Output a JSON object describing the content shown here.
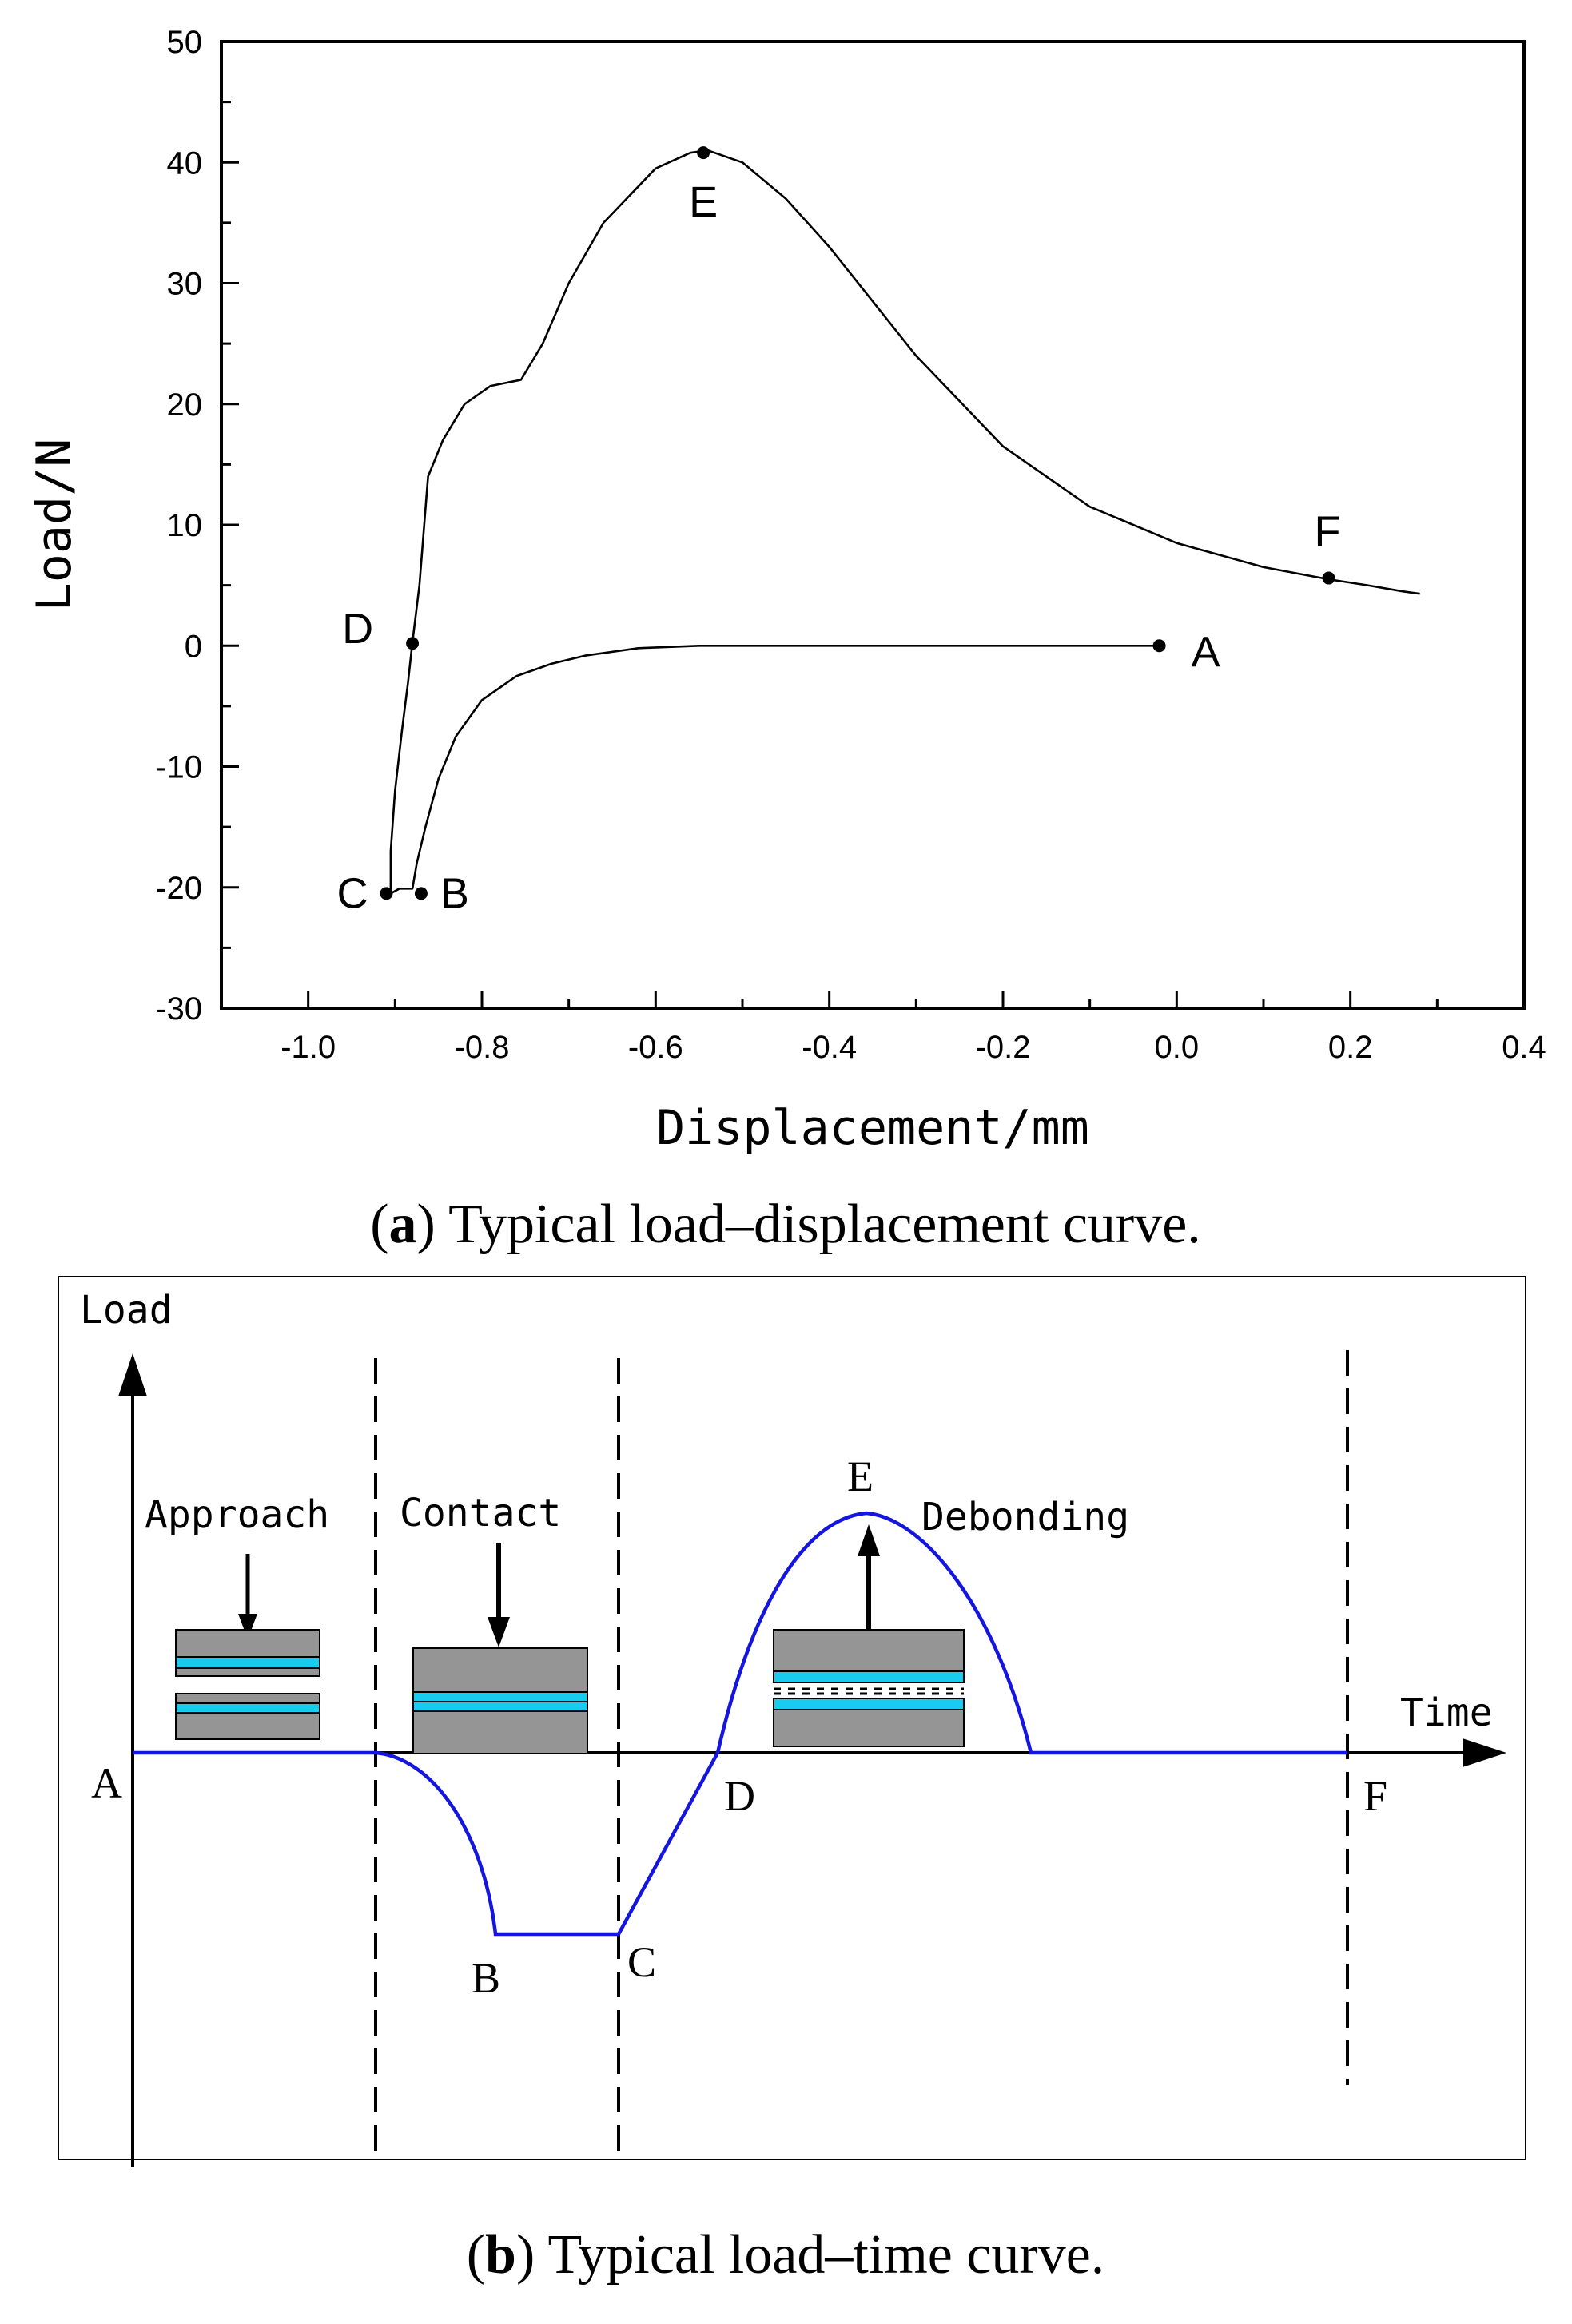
{
  "chart_data": [
    {
      "type": "line",
      "title": "(a) Typical load–displacement curve.",
      "caption_letter": "a",
      "caption_text": "Typical load–displacement curve.",
      "xlabel": "Displacement/mm",
      "ylabel": "Load/N",
      "xlim": [
        -1.1,
        0.4
      ],
      "ylim": [
        -30,
        50
      ],
      "xticks": [
        -1.0,
        -0.8,
        -0.6,
        -0.4,
        -0.2,
        0.0,
        0.2,
        0.4
      ],
      "xtick_labels": [
        "-1.0",
        "-0.8",
        "-0.6",
        "-0.4",
        "-0.2",
        "0.0",
        "0.2",
        "0.4"
      ],
      "yticks": [
        -30,
        -20,
        -10,
        0,
        10,
        20,
        30,
        40,
        50
      ],
      "ytick_labels": [
        "-30",
        "-20",
        "-10",
        "0",
        "10",
        "20",
        "30",
        "40",
        "50"
      ],
      "grid": false,
      "series": [
        {
          "name": "load-displacement",
          "x": [
            -0.02,
            -0.2,
            -0.4,
            -0.55,
            -0.62,
            -0.68,
            -0.72,
            -0.76,
            -0.8,
            -0.83,
            -0.85,
            -0.865,
            -0.875,
            -0.88,
            -0.895,
            -0.905,
            -0.905,
            -0.9,
            -0.892,
            -0.885,
            -0.88,
            -0.872,
            -0.862,
            -0.845,
            -0.82,
            -0.79,
            -0.755,
            -0.73,
            -0.7,
            -0.66,
            -0.6,
            -0.56,
            -0.54,
            -0.5,
            -0.45,
            -0.4,
            -0.35,
            -0.3,
            -0.2,
            -0.1,
            0.0,
            0.1,
            0.175,
            0.22,
            0.26,
            0.28
          ],
          "y": [
            0,
            0,
            0,
            0,
            -0.2,
            -0.8,
            -1.5,
            -2.5,
            -4.5,
            -7.5,
            -11,
            -15,
            -18,
            -20.1,
            -20.1,
            -20.5,
            -17,
            -12,
            -7,
            -3,
            0.3,
            5,
            14,
            17,
            20,
            21.5,
            22,
            25,
            30,
            35,
            39.5,
            40.8,
            41,
            40,
            37,
            33,
            28.5,
            24,
            16.5,
            11.5,
            8.5,
            6.5,
            5.5,
            5.0,
            4.5,
            4.3
          ]
        }
      ],
      "points": [
        {
          "label": "A",
          "x": -0.02,
          "y": 0
        },
        {
          "label": "B",
          "x": -0.87,
          "y": -20.5
        },
        {
          "label": "C",
          "x": -0.91,
          "y": -20.5
        },
        {
          "label": "D",
          "x": -0.88,
          "y": 0.2
        },
        {
          "label": "E",
          "x": -0.545,
          "y": 40.8
        },
        {
          "label": "F",
          "x": 0.175,
          "y": 5.6
        }
      ]
    },
    {
      "type": "line",
      "title": "(b) Typical load–time curve.",
      "caption_letter": "b",
      "caption_text": "Typical load–time curve.",
      "xlabel": "Time",
      "ylabel": "Load",
      "series_color": "#1515e0",
      "schematic": true,
      "points": [
        "A",
        "B",
        "C",
        "D",
        "E",
        "F"
      ],
      "stages": [
        "Approach",
        "Contact",
        "Debonding"
      ],
      "colors": {
        "block_gray": "#959595",
        "layer_cyan": "#19cbef",
        "curve_blue": "#1515e0"
      }
    }
  ]
}
